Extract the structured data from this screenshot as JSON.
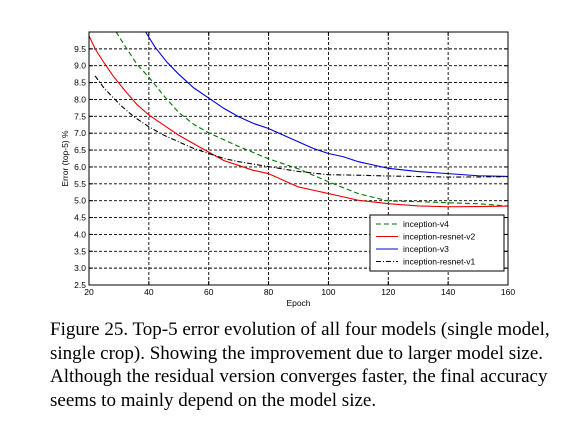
{
  "chart_data": {
    "type": "line",
    "title": "",
    "xlabel": "Epoch",
    "ylabel": "Error (top-5) %",
    "xlim": [
      20,
      160
    ],
    "ylim": [
      2.5,
      10.0
    ],
    "xticks": [
      "20",
      "40",
      "60",
      "80",
      "100",
      "120",
      "140",
      "160"
    ],
    "yticks": [
      "2.5",
      "3.0",
      "3.5",
      "4.0",
      "4.5",
      "5.0",
      "5.5",
      "6.0",
      "6.5",
      "7.0",
      "7.5",
      "8.0",
      "8.5",
      "9.0",
      "9.5"
    ],
    "grid": true,
    "legend_position": "bottom-right",
    "series": [
      {
        "name": "inception-v4",
        "color": "#007700",
        "dash": "dashed",
        "x": [
          29,
          32,
          36,
          40,
          45,
          50,
          55,
          60,
          65,
          70,
          80,
          90,
          100,
          110,
          120,
          130,
          140,
          150,
          160
        ],
        "y": [
          10.0,
          9.6,
          9.05,
          8.65,
          8.1,
          7.6,
          7.25,
          7.0,
          6.8,
          6.6,
          6.25,
          5.95,
          5.55,
          5.2,
          5.0,
          4.98,
          4.93,
          4.9,
          4.85
        ]
      },
      {
        "name": "inception-resnet-v2",
        "color": "#ee0000",
        "dash": "solid",
        "x": [
          20,
          22,
          25,
          28,
          32,
          36,
          40,
          45,
          50,
          55,
          60,
          65,
          70,
          75,
          80,
          85,
          90,
          95,
          100,
          105,
          110,
          115,
          120,
          130,
          140,
          150,
          160
        ],
        "y": [
          9.9,
          9.5,
          9.1,
          8.7,
          8.25,
          7.85,
          7.55,
          7.25,
          6.95,
          6.7,
          6.45,
          6.2,
          6.05,
          5.9,
          5.8,
          5.6,
          5.4,
          5.3,
          5.2,
          5.1,
          5.0,
          4.95,
          4.9,
          4.85,
          4.83,
          4.82,
          4.83
        ]
      },
      {
        "name": "inception-v3",
        "color": "#0000dd",
        "dash": "solid",
        "x": [
          39,
          42,
          46,
          50,
          55,
          60,
          65,
          70,
          75,
          80,
          85,
          90,
          95,
          100,
          105,
          110,
          115,
          120,
          125,
          130,
          140,
          150,
          160
        ],
        "y": [
          10.0,
          9.55,
          9.1,
          8.75,
          8.35,
          8.05,
          7.75,
          7.5,
          7.3,
          7.15,
          6.95,
          6.75,
          6.55,
          6.4,
          6.3,
          6.15,
          6.05,
          5.95,
          5.9,
          5.85,
          5.8,
          5.75,
          5.72
        ]
      },
      {
        "name": "inception-resnet-v1",
        "color": "#000000",
        "dash": "dashdot",
        "x": [
          22,
          25,
          28,
          31,
          35,
          40,
          45,
          50,
          55,
          60,
          65,
          70,
          80,
          90,
          100,
          110,
          120,
          130,
          140,
          150,
          160
        ],
        "y": [
          8.7,
          8.35,
          8.05,
          7.8,
          7.5,
          7.2,
          6.95,
          6.75,
          6.55,
          6.4,
          6.25,
          6.15,
          6.0,
          5.87,
          5.78,
          5.75,
          5.72,
          5.72,
          5.71,
          5.7,
          5.7
        ]
      }
    ]
  },
  "caption": "Figure 25. Top-5 error evolution of all four models (single model, single crop). Showing the improvement due to larger model size. Although the residual version converges faster, the final accuracy seems to mainly depend on the model size."
}
